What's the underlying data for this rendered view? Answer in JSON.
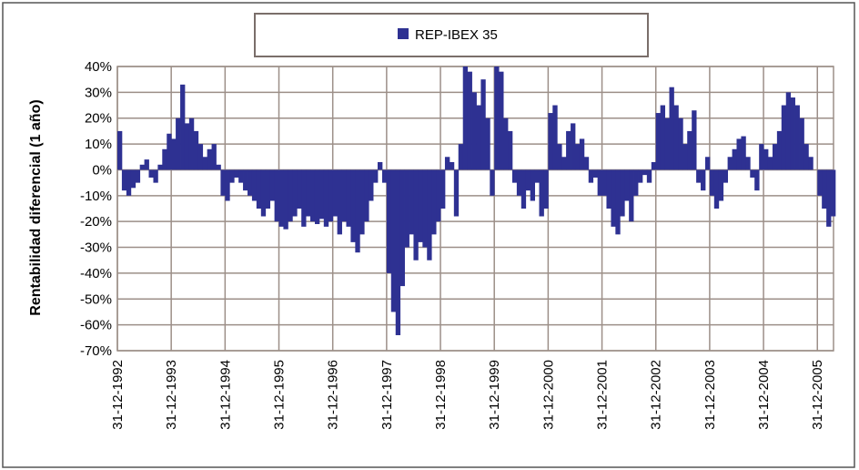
{
  "chart_data": {
    "type": "bar",
    "ylabel": "Rentabilidad diferencial (1 año)",
    "series": [
      {
        "name": "REP-IBEX 35",
        "color": "#2e3192",
        "x": [
          1993,
          1993.083,
          1993.167,
          1993.25,
          1993.333,
          1993.417,
          1993.5,
          1993.583,
          1993.667,
          1993.75,
          1993.833,
          1993.917,
          1994,
          1994.083,
          1994.167,
          1994.25,
          1994.333,
          1994.417,
          1994.5,
          1994.583,
          1994.667,
          1994.75,
          1994.833,
          1994.917,
          1995,
          1995.083,
          1995.167,
          1995.25,
          1995.333,
          1995.417,
          1995.5,
          1995.583,
          1995.667,
          1995.75,
          1995.833,
          1995.917,
          1996,
          1996.083,
          1996.167,
          1996.25,
          1996.333,
          1996.417,
          1996.5,
          1996.583,
          1996.667,
          1996.75,
          1996.833,
          1996.917,
          1997,
          1997.083,
          1997.167,
          1997.25,
          1997.333,
          1997.417,
          1997.5,
          1997.583,
          1997.667,
          1997.75,
          1997.833,
          1997.917,
          1998,
          1998.083,
          1998.167,
          1998.25,
          1998.333,
          1998.417,
          1998.5,
          1998.583,
          1998.667,
          1998.75,
          1998.833,
          1998.917,
          1999,
          1999.083,
          1999.167,
          1999.25,
          1999.333,
          1999.417,
          1999.5,
          1999.583,
          1999.667,
          1999.75,
          1999.833,
          1999.917,
          2000,
          2000.083,
          2000.167,
          2000.25,
          2000.333,
          2000.417,
          2000.5,
          2000.583,
          2000.667,
          2000.75,
          2000.833,
          2000.917,
          2001,
          2001.083,
          2001.167,
          2001.25,
          2001.333,
          2001.417,
          2001.5,
          2001.583,
          2001.667,
          2001.75,
          2001.833,
          2001.917,
          2002,
          2002.083,
          2002.167,
          2002.25,
          2002.333,
          2002.417,
          2002.5,
          2002.583,
          2002.667,
          2002.75,
          2002.833,
          2002.917,
          2003,
          2003.083,
          2003.167,
          2003.25,
          2003.333,
          2003.417,
          2003.5,
          2003.583,
          2003.667,
          2003.75,
          2003.833,
          2003.917,
          2004,
          2004.083,
          2004.167,
          2004.25,
          2004.333,
          2004.417,
          2004.5,
          2004.583,
          2004.667,
          2004.75,
          2004.833,
          2004.917,
          2005,
          2005.083,
          2005.167,
          2005.25,
          2005.333,
          2005.417,
          2005.5,
          2005.583,
          2005.667,
          2005.75,
          2005.833,
          2005.917,
          2006,
          2006.083,
          2006.167,
          2006.25
        ],
        "values": [
          15,
          -8,
          -10,
          -7,
          -5,
          2,
          4,
          -3,
          -5,
          2,
          8,
          14,
          12,
          20,
          33,
          18,
          20,
          15,
          10,
          5,
          8,
          10,
          2,
          -10,
          -12,
          -5,
          -3,
          -5,
          -8,
          -10,
          -12,
          -15,
          -18,
          -15,
          -12,
          -20,
          -22,
          -23,
          -20,
          -18,
          -15,
          -22,
          -18,
          -20,
          -21,
          -19,
          -22,
          -20,
          -18,
          -25,
          -20,
          -22,
          -28,
          -32,
          -25,
          -20,
          -12,
          -5,
          3,
          -5,
          -40,
          -55,
          -64,
          -45,
          -30,
          -25,
          -35,
          -28,
          -30,
          -35,
          -25,
          -20,
          -15,
          5,
          3,
          -18,
          10,
          40,
          38,
          30,
          25,
          35,
          20,
          -10,
          40,
          38,
          20,
          15,
          -5,
          -10,
          -15,
          -8,
          -12,
          -5,
          -18,
          -15,
          22,
          25,
          10,
          5,
          15,
          18,
          10,
          12,
          5,
          -5,
          -3,
          -10,
          -10,
          -15,
          -22,
          -25,
          -18,
          -12,
          -20,
          -10,
          -5,
          -2,
          -5,
          3,
          22,
          25,
          20,
          32,
          25,
          20,
          10,
          15,
          23,
          -5,
          -8,
          5,
          -10,
          -15,
          -12,
          -5,
          5,
          8,
          12,
          13,
          5,
          -3,
          -8,
          10,
          8,
          5,
          10,
          15,
          25,
          30,
          28,
          25,
          20,
          10,
          5,
          0,
          -10,
          -15,
          -22,
          -18
        ]
      }
    ],
    "xlim": [
      1993,
      2006.3
    ],
    "xticks": [
      {
        "value": 1993,
        "label": "31-12-1992"
      },
      {
        "value": 1994,
        "label": "31-12-1993"
      },
      {
        "value": 1995,
        "label": "31-12-1994"
      },
      {
        "value": 1996,
        "label": "31-12-1995"
      },
      {
        "value": 1997,
        "label": "31-12-1996"
      },
      {
        "value": 1998,
        "label": "31-12-1997"
      },
      {
        "value": 1999,
        "label": "31-12-1998"
      },
      {
        "value": 2000,
        "label": "31-12-1999"
      },
      {
        "value": 2001,
        "label": "31-12-2000"
      },
      {
        "value": 2002,
        "label": "31-12-2001"
      },
      {
        "value": 2003,
        "label": "31-12-2002"
      },
      {
        "value": 2004,
        "label": "31-12-2003"
      },
      {
        "value": 2005,
        "label": "31-12-2004"
      },
      {
        "value": 2006,
        "label": "31-12-2005"
      }
    ],
    "ylim": [
      -70,
      40
    ],
    "yticks": [
      {
        "value": -70,
        "label": "-70%"
      },
      {
        "value": -60,
        "label": "-60%"
      },
      {
        "value": -50,
        "label": "-50%"
      },
      {
        "value": -40,
        "label": "-40%"
      },
      {
        "value": -30,
        "label": "-30%"
      },
      {
        "value": -20,
        "label": "-20%"
      },
      {
        "value": -10,
        "label": "-10%"
      },
      {
        "value": 0,
        "label": "0%"
      },
      {
        "value": 10,
        "label": "10%"
      },
      {
        "value": 20,
        "label": "20%"
      },
      {
        "value": 30,
        "label": "30%"
      },
      {
        "value": 40,
        "label": "40%"
      }
    ],
    "grid": true
  }
}
